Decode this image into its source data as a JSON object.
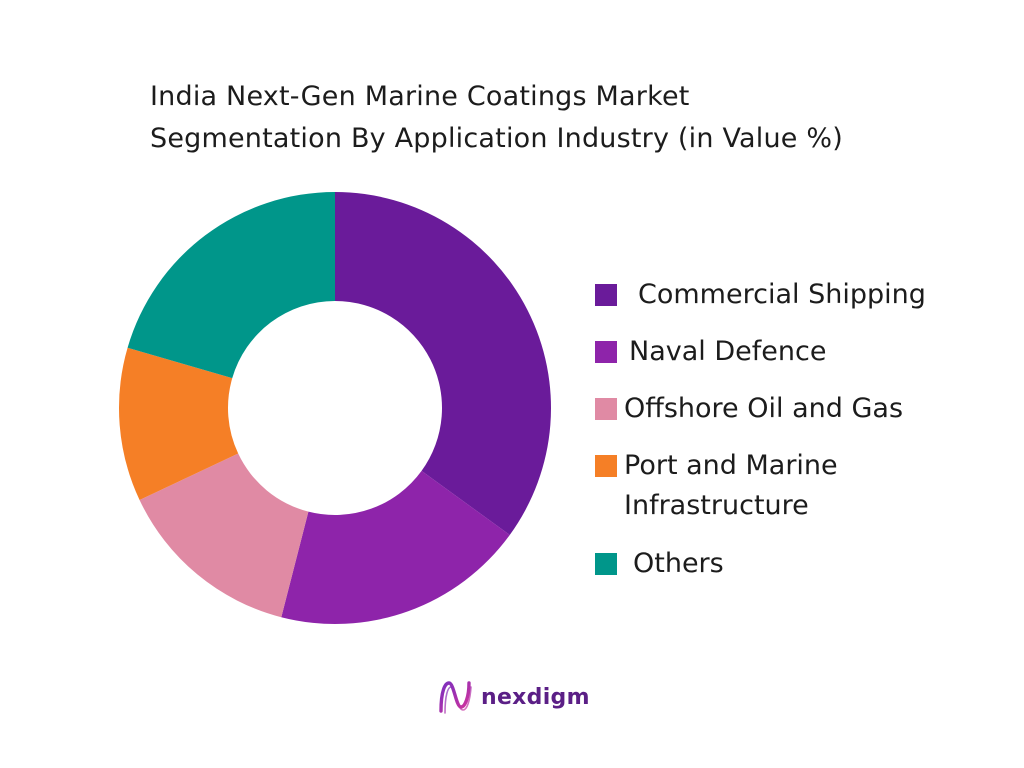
{
  "chart_data": {
    "type": "pie",
    "donut": true,
    "title_lines": [
      "India Next-Gen Marine Coatings Market",
      "Segmentation By Application Industry (in Value %)"
    ],
    "categories": [
      "Commercial Shipping",
      "Naval Defence",
      "Offshore Oil and Gas",
      "Port and Marine Infrastructure",
      "Others"
    ],
    "legend_labels": [
      [
        "Commercial Shipping"
      ],
      [
        "Naval Defence"
      ],
      [
        "Offshore Oil and Gas"
      ],
      [
        "Port and Marine",
        "Infrastructure"
      ],
      [
        "Others"
      ]
    ],
    "values": [
      35,
      19,
      14,
      11.5,
      20.5
    ],
    "colors": [
      "#6a1b9a",
      "#8e24aa",
      "#e08aa4",
      "#f57f26",
      "#00968a"
    ],
    "legend_position": "right",
    "start_angle_deg": 0,
    "direction": "clockwise"
  },
  "brand": {
    "name": "nexdigm",
    "color": "#5b1f86",
    "logo_icon": "nexdigm-logo-icon"
  }
}
